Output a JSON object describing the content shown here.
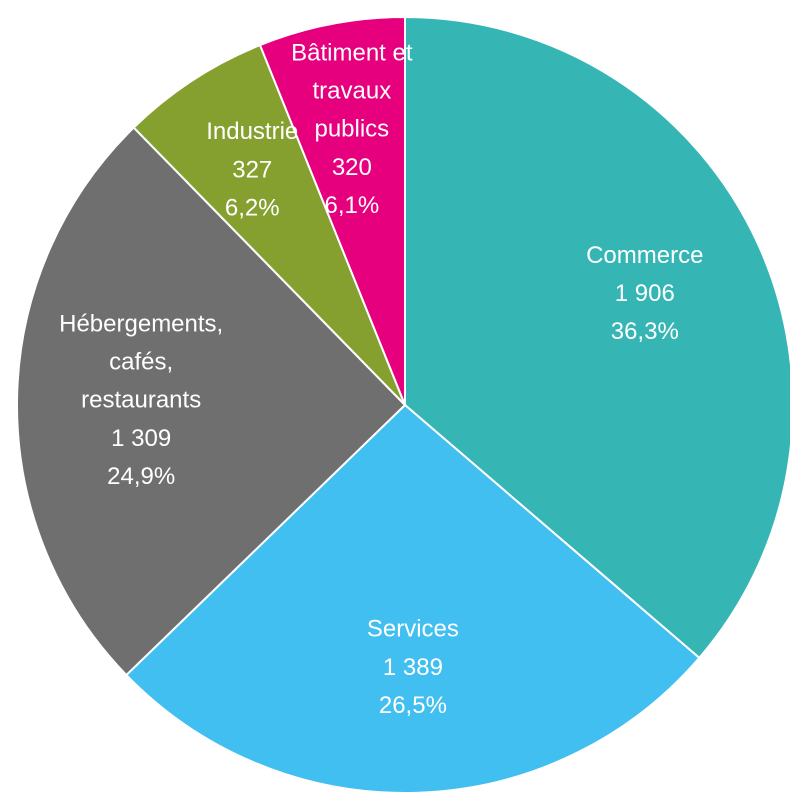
{
  "chart_data": {
    "type": "pie",
    "categories": [
      "Commerce",
      "Services",
      "Hébergements, cafés, restaurants",
      "Industrie",
      "Bâtiment et travaux publics"
    ],
    "values": [
      1906,
      1389,
      1309,
      327,
      320
    ],
    "value_labels": [
      "1 906",
      "1 389",
      "1 309",
      "327",
      "320"
    ],
    "percentages": [
      36.3,
      26.5,
      24.9,
      6.2,
      6.1
    ],
    "percentage_labels": [
      "36,3%",
      "26,5%",
      "24,9%",
      "6,2%",
      "6,1%"
    ],
    "colors": [
      "#36b5b5",
      "#41bff0",
      "#6f6f6f",
      "#86a030",
      "#e6007e"
    ]
  }
}
